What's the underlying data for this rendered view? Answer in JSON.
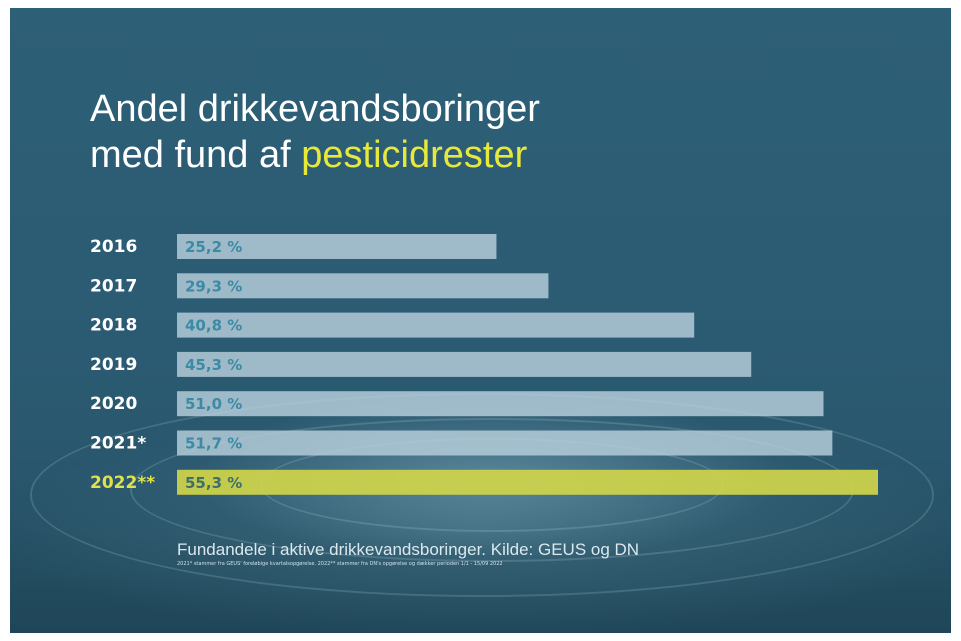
{
  "title": {
    "line1": "Andel drikkevandsboringer",
    "line2_prefix": "med fund af ",
    "line2_highlight": "pesticidrester"
  },
  "colors": {
    "background": "#2b5b72",
    "bar": "#b8d0dc",
    "bar_highlight": "#cfd54a",
    "title_highlight": "#e6e83c"
  },
  "chart_data": {
    "type": "bar",
    "orientation": "horizontal",
    "categories": [
      "2016",
      "2017",
      "2018",
      "2019",
      "2020",
      "2021*",
      "2022**"
    ],
    "values": [
      25.2,
      29.3,
      40.8,
      45.3,
      51.0,
      51.7,
      55.3
    ],
    "value_labels": [
      "25,2 %",
      "29,3 %",
      "40,8 %",
      "45,3 %",
      "51,0 %",
      "51,7 %",
      "55,3 %"
    ],
    "highlight_category": "2022**",
    "title": "",
    "xlabel": "",
    "ylabel": "",
    "xlim": [
      0,
      55.3
    ],
    "grid": false
  },
  "footer": {
    "source": "Fundandele i aktive drikkevandsboringer. Kilde: GEUS og DN",
    "note": "2021* stammer fra GEUS' foreløbige kvartalsopgørelse. 2022** stammer fra DN's opgørelse og dækker perioden 1/1 - 15/09 2022"
  }
}
